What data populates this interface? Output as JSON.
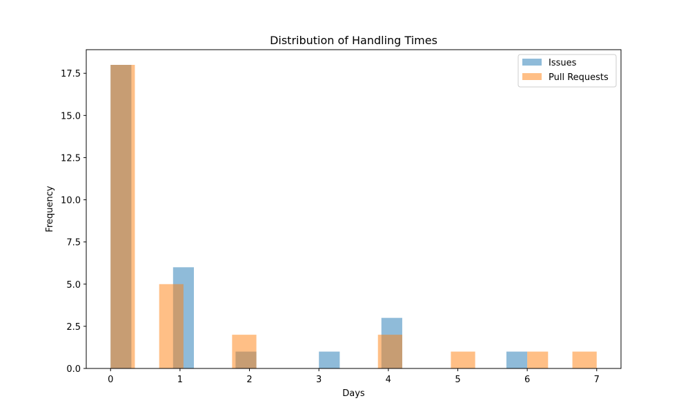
{
  "chart_data": {
    "type": "bar",
    "title": "Distribution of Handling Times",
    "xlabel": "Days",
    "ylabel": "Frequency",
    "xlim": [
      -0.35,
      7.35
    ],
    "ylim": [
      0,
      18.9
    ],
    "xticks": [
      0,
      1,
      2,
      3,
      4,
      5,
      6,
      7
    ],
    "yticks": [
      0.0,
      2.5,
      5.0,
      7.5,
      10.0,
      12.5,
      15.0,
      17.5
    ],
    "ytick_labels": [
      "0.0",
      "2.5",
      "5.0",
      "7.5",
      "10.0",
      "12.5",
      "15.0",
      "17.5"
    ],
    "grid": false,
    "legend_position": "top-right",
    "series": [
      {
        "name": "Issues",
        "color": "#1f77b4",
        "opacity": 0.5,
        "bins": [
          {
            "x0": 0.0,
            "x1": 0.3,
            "count": 18
          },
          {
            "x0": 0.9,
            "x1": 1.2,
            "count": 6
          },
          {
            "x0": 1.8,
            "x1": 2.1,
            "count": 1
          },
          {
            "x0": 3.0,
            "x1": 3.3,
            "count": 1
          },
          {
            "x0": 3.9,
            "x1": 4.2,
            "count": 3
          },
          {
            "x0": 5.7,
            "x1": 6.0,
            "count": 1
          }
        ]
      },
      {
        "name": "Pull Requests",
        "color": "#ff7f0e",
        "opacity": 0.5,
        "bins": [
          {
            "x0": 0.0,
            "x1": 0.35,
            "count": 18
          },
          {
            "x0": 0.7,
            "x1": 1.05,
            "count": 5
          },
          {
            "x0": 1.75,
            "x1": 2.1,
            "count": 2
          },
          {
            "x0": 3.85,
            "x1": 4.2,
            "count": 2
          },
          {
            "x0": 4.9,
            "x1": 5.25,
            "count": 1
          },
          {
            "x0": 6.0,
            "x1": 6.3,
            "count": 1
          },
          {
            "x0": 6.65,
            "x1": 7.0,
            "count": 1
          }
        ]
      }
    ]
  }
}
